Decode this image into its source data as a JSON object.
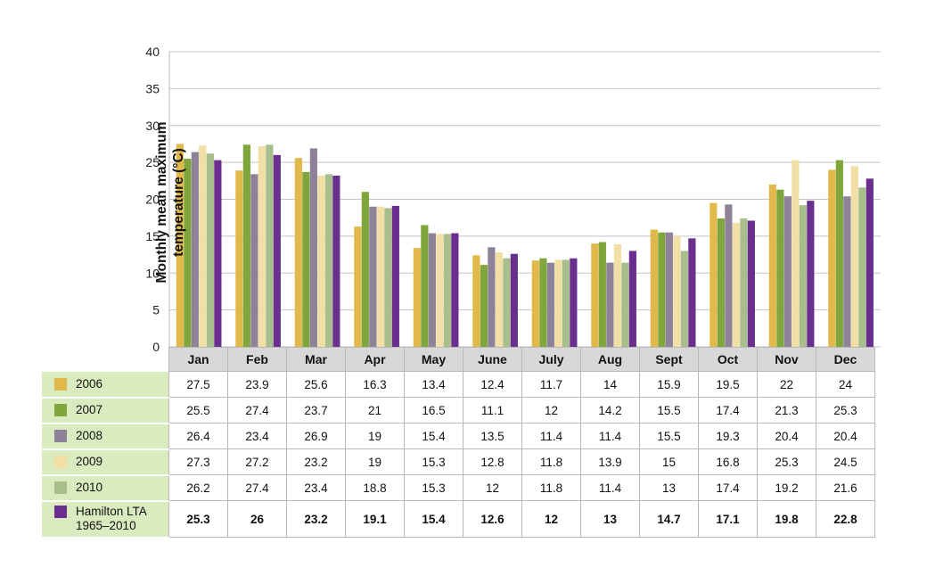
{
  "chart_data": {
    "type": "bar",
    "ylabel": "Monthly mean maximum temperature (°C)",
    "ylabel_lines": [
      "Monthly mean maximum",
      "temperature (°C)"
    ],
    "ylim": [
      0,
      40
    ],
    "yticks": [
      "0",
      "5",
      "10",
      "15",
      "20",
      "25",
      "30",
      "35",
      "40"
    ],
    "grid": true,
    "categories": [
      "Jan",
      "Feb",
      "Mar",
      "Apr",
      "May",
      "June",
      "July",
      "Aug",
      "Sept",
      "Oct",
      "Nov",
      "Dec"
    ],
    "series": [
      {
        "name": "2006",
        "color": "#e0b94a",
        "values": [
          "27.5",
          "23.9",
          "25.6",
          "16.3",
          "13.4",
          "12.4",
          "11.7",
          "14",
          "15.9",
          "19.5",
          "22",
          "24"
        ]
      },
      {
        "name": "2007",
        "color": "#7fa63a",
        "values": [
          "25.5",
          "27.4",
          "23.7",
          "21",
          "16.5",
          "11.1",
          "12",
          "14.2",
          "15.5",
          "17.4",
          "21.3",
          "25.3"
        ]
      },
      {
        "name": "2008",
        "color": "#8e8299",
        "values": [
          "26.4",
          "23.4",
          "26.9",
          "19",
          "15.4",
          "13.5",
          "11.4",
          "11.4",
          "15.5",
          "19.3",
          "20.4",
          "20.4"
        ]
      },
      {
        "name": "2009",
        "color": "#f1dfa6",
        "values": [
          "27.3",
          "27.2",
          "23.2",
          "19",
          "15.3",
          "12.8",
          "11.8",
          "13.9",
          "15",
          "16.8",
          "25.3",
          "24.5"
        ]
      },
      {
        "name": "2010",
        "color": "#a8bf8c",
        "values": [
          "26.2",
          "27.4",
          "23.4",
          "18.8",
          "15.3",
          "12",
          "11.8",
          "11.4",
          "13",
          "17.4",
          "19.2",
          "21.6"
        ]
      },
      {
        "name": "Hamilton LTA 1965–2010",
        "label_lines": [
          "Hamilton LTA",
          "1965–2010"
        ],
        "color": "#6a2e8e",
        "bold": true,
        "values": [
          "25.3",
          "26",
          "23.2",
          "19.1",
          "15.4",
          "12.6",
          "12",
          "13",
          "14.7",
          "17.1",
          "19.8",
          "22.8"
        ]
      }
    ]
  }
}
